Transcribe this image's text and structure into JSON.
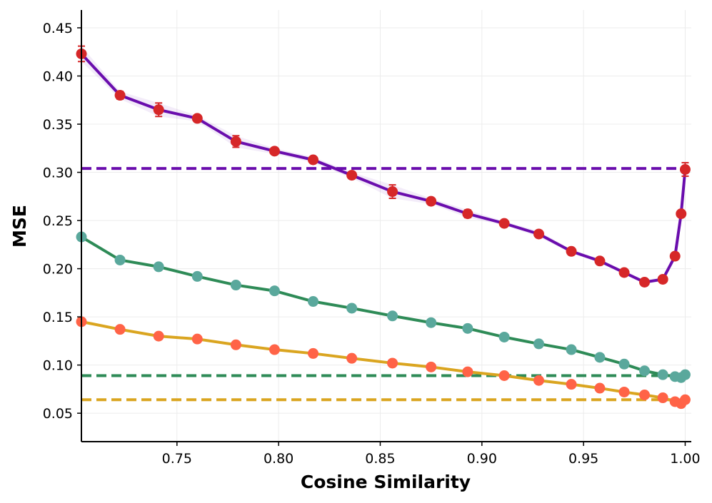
{
  "chart_data": {
    "type": "line",
    "title": "",
    "xlabel": "Cosine Similarity",
    "ylabel": "MSE",
    "xlim": [
      0.703,
      1.003
    ],
    "ylim": [
      0.0205,
      0.4685
    ],
    "x_ticks": [
      0.75,
      0.8,
      0.85,
      0.9,
      0.95,
      1.0
    ],
    "x_tick_labels": [
      "0.75",
      "0.80",
      "0.85",
      "0.90",
      "0.95",
      "1.00"
    ],
    "y_ticks": [
      0.05,
      0.1,
      0.15,
      0.2,
      0.25,
      0.3,
      0.35,
      0.4,
      0.45
    ],
    "y_tick_labels": [
      "0.05",
      "0.10",
      "0.15",
      "0.20",
      "0.25",
      "0.30",
      "0.35",
      "0.40",
      "0.45"
    ],
    "grid": true,
    "legend": "none",
    "colors": {
      "purple": "#6a0dad",
      "red": "#d62728",
      "green": "#2e8b57",
      "teal": "#5aa89c",
      "gold": "#daa520",
      "coral": "#ff6347",
      "grid": "#ececec"
    },
    "series": [
      {
        "name": "purple",
        "line_color": "#6a0dad",
        "marker_color": "#d62728",
        "x": [
          0.703,
          0.722,
          0.741,
          0.76,
          0.779,
          0.798,
          0.817,
          0.836,
          0.856,
          0.875,
          0.893,
          0.911,
          0.928,
          0.944,
          0.958,
          0.97,
          0.98,
          0.989,
          0.995,
          0.998,
          1.0
        ],
        "y": [
          0.423,
          0.38,
          0.365,
          0.356,
          0.332,
          0.322,
          0.313,
          0.297,
          0.28,
          0.27,
          0.257,
          0.247,
          0.236,
          0.218,
          0.208,
          0.196,
          0.186,
          0.189,
          0.213,
          0.257,
          0.303
        ],
        "err": [
          0.008,
          0.004,
          0.007,
          0.003,
          0.006,
          0.003,
          0.003,
          0.003,
          0.007,
          0.003,
          0.004,
          0.002,
          0.003,
          0.002,
          0.002,
          0.002,
          0.002,
          0.002,
          0.002,
          0.003,
          0.007
        ]
      },
      {
        "name": "green",
        "line_color": "#2e8b57",
        "marker_color": "#5aa89c",
        "x": [
          0.703,
          0.722,
          0.741,
          0.76,
          0.779,
          0.798,
          0.817,
          0.836,
          0.856,
          0.875,
          0.893,
          0.911,
          0.928,
          0.944,
          0.958,
          0.97,
          0.98,
          0.989,
          0.995,
          0.998,
          1.0
        ],
        "y": [
          0.233,
          0.209,
          0.202,
          0.192,
          0.183,
          0.177,
          0.166,
          0.159,
          0.151,
          0.144,
          0.138,
          0.129,
          0.122,
          0.116,
          0.108,
          0.101,
          0.094,
          0.09,
          0.088,
          0.087,
          0.09
        ]
      },
      {
        "name": "gold",
        "line_color": "#daa520",
        "marker_color": "#ff6347",
        "x": [
          0.703,
          0.722,
          0.741,
          0.76,
          0.779,
          0.798,
          0.817,
          0.836,
          0.856,
          0.875,
          0.893,
          0.911,
          0.928,
          0.944,
          0.958,
          0.97,
          0.98,
          0.989,
          0.995,
          0.998,
          1.0
        ],
        "y": [
          0.145,
          0.137,
          0.13,
          0.127,
          0.121,
          0.116,
          0.112,
          0.107,
          0.102,
          0.098,
          0.093,
          0.089,
          0.084,
          0.08,
          0.076,
          0.072,
          0.069,
          0.066,
          0.062,
          0.06,
          0.064
        ]
      }
    ],
    "reference_lines": [
      {
        "name": "purple-baseline",
        "y": 0.304,
        "color": "#6a0dad"
      },
      {
        "name": "green-baseline",
        "y": 0.089,
        "color": "#2e8b57"
      },
      {
        "name": "gold-baseline",
        "y": 0.064,
        "color": "#daa520"
      }
    ]
  }
}
